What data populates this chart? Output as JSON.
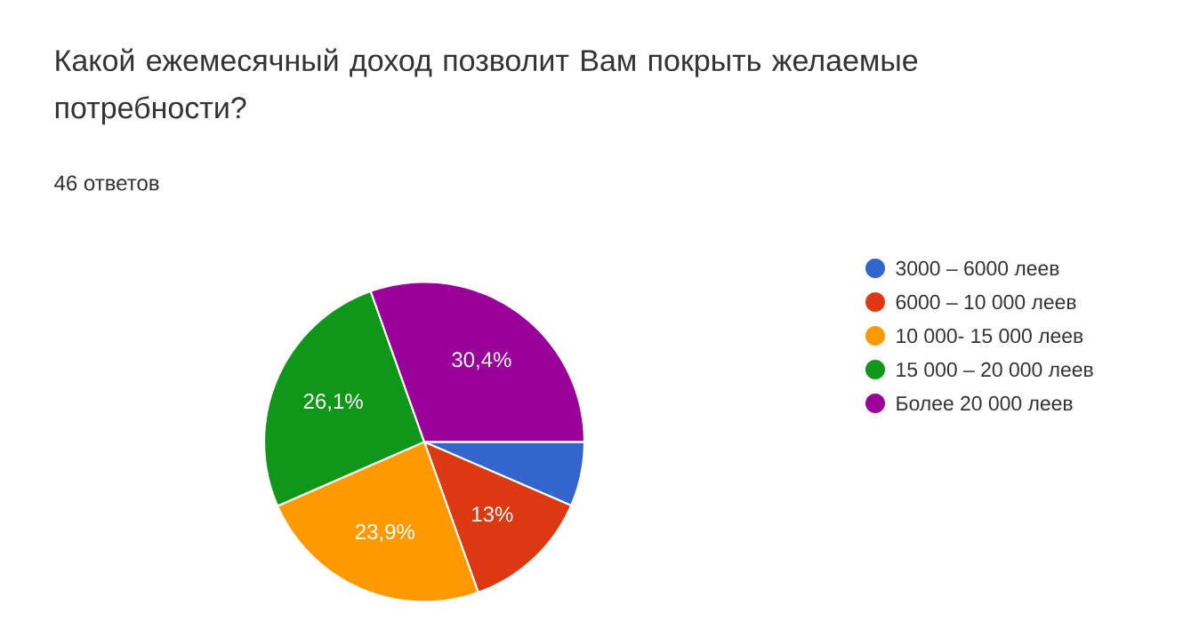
{
  "chart_data": {
    "type": "pie",
    "title": "Какой ежемесячный доход позволит Вам покрыть желаемые потребности?",
    "subtitle": "46 ответов",
    "categories": [
      "3000 – 6000 леев",
      "6000 – 10 000 леев",
      "10 000- 15 000 леев",
      "15 000 – 20 000 леев",
      "Более 20 000 леев"
    ],
    "values": [
      6.5,
      13,
      23.9,
      26.1,
      30.4
    ],
    "value_labels": [
      null,
      "13%",
      "23,9%",
      "26,1%",
      "30,4%"
    ],
    "colors": [
      "#3366cc",
      "#dc3912",
      "#ff9900",
      "#109618",
      "#990099"
    ],
    "legend": "right"
  }
}
